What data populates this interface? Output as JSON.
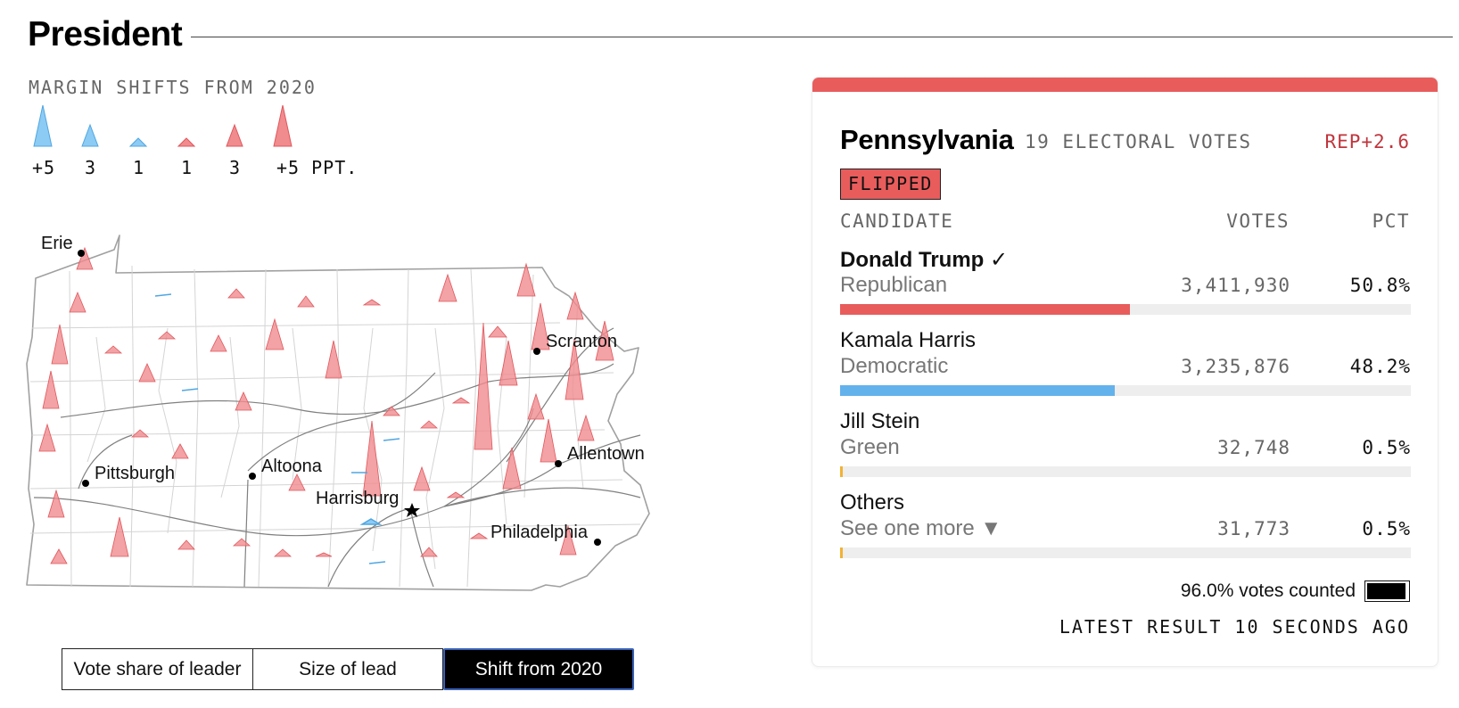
{
  "header": {
    "title": "President"
  },
  "legend": {
    "title": "MARGIN SHIFTS FROM 2020",
    "items": [
      {
        "label": "+5",
        "party": "dem",
        "value": 5
      },
      {
        "label": "3",
        "party": "dem",
        "value": 3
      },
      {
        "label": "1",
        "party": "dem",
        "value": 1
      },
      {
        "label": "1",
        "party": "rep",
        "value": 1
      },
      {
        "label": "3",
        "party": "rep",
        "value": 3
      },
      {
        "label": "+5 PPT.",
        "party": "rep",
        "value": 5
      }
    ]
  },
  "map": {
    "cities": [
      "Erie",
      "Scranton",
      "Pittsburgh",
      "Altoona",
      "Allentown",
      "Harrisburg",
      "Philadelphia"
    ]
  },
  "toggle": {
    "options": [
      "Vote share of leader",
      "Size of lead",
      "Shift from 2020"
    ],
    "selected": "Shift from 2020"
  },
  "panel": {
    "state": "Pennsylvania",
    "electoral_votes": "19 ELECTORAL VOTES",
    "margin": "REP+2.6",
    "badge": "FLIPPED",
    "columns": {
      "candidate": "CANDIDATE",
      "votes": "VOTES",
      "pct": "PCT"
    },
    "candidates": [
      {
        "name": "Donald Trump",
        "winner_mark": "✓",
        "party": "Republican",
        "votes": "3,411,930",
        "pct": "50.8%",
        "share": 50.8,
        "color": "#e85c5c"
      },
      {
        "name": "Kamala Harris",
        "winner_mark": "",
        "party": "Democratic",
        "votes": "3,235,876",
        "pct": "48.2%",
        "share": 48.2,
        "color": "#63b2ec"
      },
      {
        "name": "Jill Stein",
        "winner_mark": "",
        "party": "Green",
        "votes": "32,748",
        "pct": "0.5%",
        "share": 0.5,
        "color": "#f2b233"
      },
      {
        "name": "Others",
        "winner_mark": "",
        "party": "See one more ▼",
        "votes": "31,773",
        "pct": "0.5%",
        "share": 0.5,
        "color": "#f2b233"
      }
    ],
    "counted_label": "96.0% votes counted",
    "counted_fraction": 0.96,
    "latest": "LATEST RESULT 10 SECONDS AGO"
  },
  "colors": {
    "rep": "#f08b8e",
    "rep_stroke": "#e0575c",
    "dem": "#8ccbf3",
    "dem_stroke": "#4fa6e2"
  }
}
